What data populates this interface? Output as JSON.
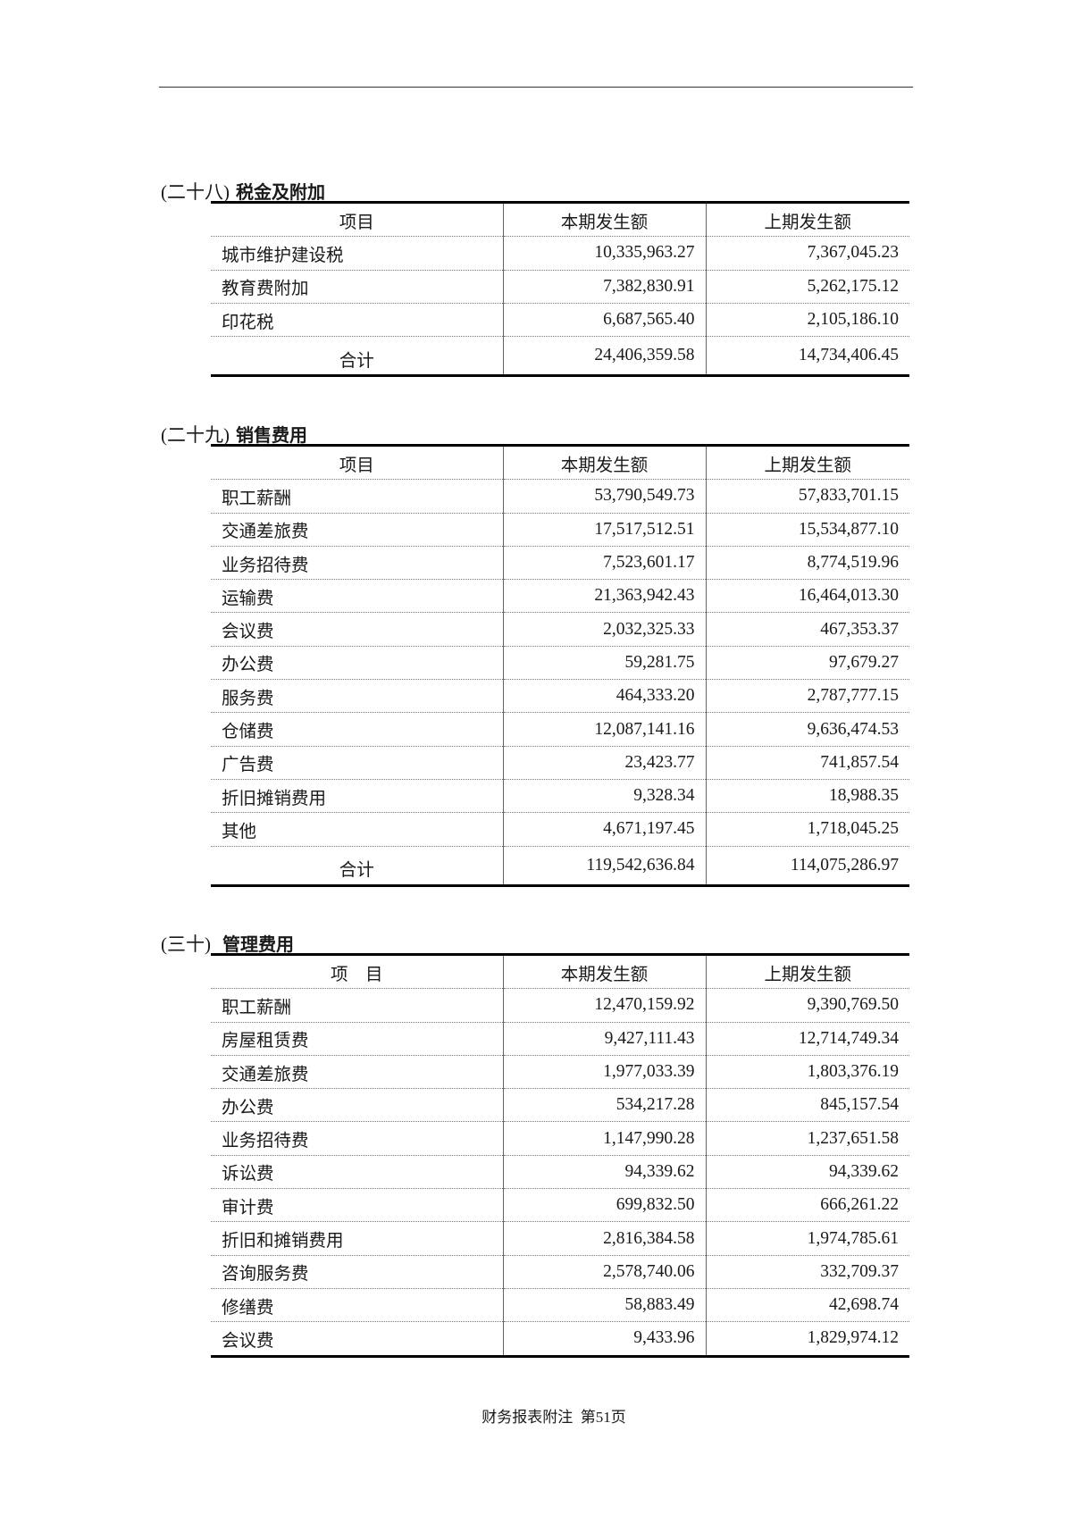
{
  "footer": "财务报表附注  第51页",
  "sections": [
    {
      "number": "(二十八)",
      "title": "税金及附加",
      "headers": [
        "项目",
        "本期发生额",
        "上期发生额"
      ],
      "rows": [
        [
          "城市维护建设税",
          "10,335,963.27",
          "7,367,045.23"
        ],
        [
          "教育费附加",
          "7,382,830.91",
          "5,262,175.12"
        ],
        [
          "印花税",
          "6,687,565.40",
          "2,105,186.10"
        ]
      ],
      "total": [
        "合计",
        "24,406,359.58",
        "14,734,406.45"
      ]
    },
    {
      "number": "(二十九)",
      "title": "销售费用",
      "headers": [
        "项目",
        "本期发生额",
        "上期发生额"
      ],
      "rows": [
        [
          "职工薪酬",
          "53,790,549.73",
          "57,833,701.15"
        ],
        [
          "交通差旅费",
          "17,517,512.51",
          "15,534,877.10"
        ],
        [
          "业务招待费",
          "7,523,601.17",
          "8,774,519.96"
        ],
        [
          "运输费",
          "21,363,942.43",
          "16,464,013.30"
        ],
        [
          "会议费",
          "2,032,325.33",
          "467,353.37"
        ],
        [
          "办公费",
          "59,281.75",
          "97,679.27"
        ],
        [
          "服务费",
          "464,333.20",
          "2,787,777.15"
        ],
        [
          "仓储费",
          "12,087,141.16",
          "9,636,474.53"
        ],
        [
          "广告费",
          "23,423.77",
          "741,857.54"
        ],
        [
          "折旧摊销费用",
          "9,328.34",
          "18,988.35"
        ],
        [
          "其他",
          "4,671,197.45",
          "1,718,045.25"
        ]
      ],
      "total": [
        "合计",
        "119,542,636.84",
        "114,075,286.97"
      ]
    },
    {
      "number": "(三十)",
      "title": "管理费用",
      "headers": [
        "项    目",
        "本期发生额",
        "上期发生额"
      ],
      "rows": [
        [
          "职工薪酬",
          "12,470,159.92",
          "9,390,769.50"
        ],
        [
          "房屋租赁费",
          "9,427,111.43",
          "12,714,749.34"
        ],
        [
          "交通差旅费",
          "1,977,033.39",
          "1,803,376.19"
        ],
        [
          "办公费",
          "534,217.28",
          "845,157.54"
        ],
        [
          "业务招待费",
          "1,147,990.28",
          "1,237,651.58"
        ],
        [
          "诉讼费",
          "94,339.62",
          "94,339.62"
        ],
        [
          "审计费",
          "699,832.50",
          "666,261.22"
        ],
        [
          "折旧和摊销费用",
          "2,816,384.58",
          "1,974,785.61"
        ],
        [
          "咨询服务费",
          "2,578,740.06",
          "332,709.37"
        ],
        [
          "修缮费",
          "58,883.49",
          "42,698.74"
        ],
        [
          "会议费",
          "9,433.96",
          "1,829,974.12"
        ]
      ],
      "total": null
    }
  ]
}
